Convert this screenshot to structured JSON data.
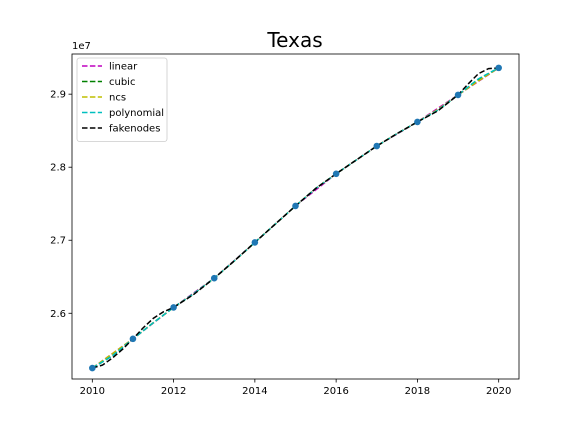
{
  "chart_data": {
    "type": "line",
    "title": "Texas",
    "xlabel": "",
    "ylabel": "",
    "y_offset_label": "1e7",
    "xlim": [
      2009.5,
      2020.5
    ],
    "ylim": [
      25.1,
      29.55
    ],
    "x_unit_scale": 1,
    "y_unit_scale": 1000000,
    "x_ticks": [
      2010,
      2012,
      2014,
      2016,
      2018,
      2020
    ],
    "x_tick_labels": [
      "2010",
      "2012",
      "2014",
      "2016",
      "2018",
      "2020"
    ],
    "y_ticks": [
      26.0,
      26.1,
      26.2,
      26.3,
      26.4,
      26.5,
      26.6,
      26.7,
      26.8,
      26.9,
      27.0,
      27.1,
      27.2,
      27.3,
      27.4,
      27.5,
      27.6,
      27.7,
      27.8,
      27.9,
      28.0,
      28.1,
      28.2,
      28.3,
      28.4,
      28.5,
      28.6,
      28.7,
      28.8,
      28.9,
      29.0
    ],
    "y_tick_values": [
      26.0,
      27.0,
      28.0,
      29.0
    ],
    "y_tick_labels": [
      "2.6",
      "2.7",
      "2.8",
      "2.9"
    ],
    "grid": false,
    "legend_position": "top-left",
    "points": {
      "x": [
        2010,
        2011,
        2012,
        2013,
        2014,
        2015,
        2016,
        2017,
        2018,
        2019,
        2020
      ],
      "y": [
        25.25,
        25.65,
        26.08,
        26.48,
        26.97,
        27.47,
        27.91,
        28.29,
        28.62,
        28.99,
        29.36
      ],
      "color": "#1f77b4"
    },
    "series": [
      {
        "name": "linear",
        "color": "#bf00bf",
        "x": [
          2010,
          2011,
          2012,
          2013,
          2014,
          2015,
          2016,
          2017,
          2018,
          2019,
          2020
        ],
        "y": [
          25.25,
          25.65,
          26.08,
          26.48,
          26.97,
          27.47,
          27.91,
          28.29,
          28.62,
          28.99,
          29.36
        ]
      },
      {
        "name": "cubic",
        "color": "#008000",
        "x": [
          2010,
          2010.5,
          2011,
          2011.5,
          2012,
          2012.5,
          2013,
          2013.5,
          2014,
          2014.5,
          2015,
          2015.5,
          2016,
          2016.5,
          2017,
          2017.5,
          2018,
          2018.5,
          2019,
          2019.5,
          2020
        ],
        "y": [
          25.25,
          25.42,
          25.65,
          25.87,
          26.08,
          26.27,
          26.48,
          26.72,
          26.97,
          27.22,
          27.47,
          27.71,
          27.91,
          28.1,
          28.29,
          28.46,
          28.62,
          28.78,
          28.99,
          29.2,
          29.36
        ]
      },
      {
        "name": "ncs",
        "color": "#bfbf00",
        "x": [
          2010,
          2010.5,
          2011,
          2011.5,
          2012,
          2012.5,
          2013,
          2013.5,
          2014,
          2014.5,
          2015,
          2015.5,
          2016,
          2016.5,
          2017,
          2017.5,
          2018,
          2018.5,
          2019,
          2019.5,
          2020
        ],
        "y": [
          25.25,
          25.45,
          25.65,
          25.87,
          26.08,
          26.27,
          26.48,
          26.72,
          26.97,
          27.22,
          27.47,
          27.71,
          27.91,
          28.1,
          28.29,
          28.46,
          28.62,
          28.79,
          28.99,
          29.18,
          29.36
        ]
      },
      {
        "name": "polynomial",
        "color": "#00bfbf",
        "x": [
          2010,
          2010.5,
          2011,
          2011.5,
          2012,
          2012.5,
          2013,
          2013.5,
          2014,
          2014.5,
          2015,
          2015.5,
          2016,
          2016.5,
          2017,
          2017.5,
          2018,
          2018.5,
          2019,
          2019.5,
          2020
        ],
        "y": [
          25.25,
          25.42,
          25.65,
          25.87,
          26.08,
          26.27,
          26.48,
          26.72,
          26.97,
          27.22,
          27.47,
          27.71,
          27.91,
          28.1,
          28.29,
          28.46,
          28.62,
          28.78,
          28.99,
          29.21,
          29.36
        ]
      },
      {
        "name": "fakenodes",
        "color": "#000000",
        "x": [
          2010,
          2010.25,
          2010.5,
          2010.75,
          2011,
          2011.25,
          2011.5,
          2011.75,
          2012,
          2012.5,
          2013,
          2013.5,
          2014,
          2014.5,
          2015,
          2015.5,
          2016,
          2016.5,
          2017,
          2017.5,
          2018,
          2018.5,
          2019,
          2019.25,
          2019.5,
          2019.75,
          2020
        ],
        "y": [
          25.25,
          25.29,
          25.39,
          25.51,
          25.65,
          25.8,
          25.93,
          26.02,
          26.08,
          26.26,
          26.48,
          26.72,
          26.97,
          27.22,
          27.47,
          27.71,
          27.91,
          28.1,
          28.29,
          28.46,
          28.62,
          28.77,
          28.99,
          29.14,
          29.28,
          29.35,
          29.36
        ]
      }
    ]
  }
}
